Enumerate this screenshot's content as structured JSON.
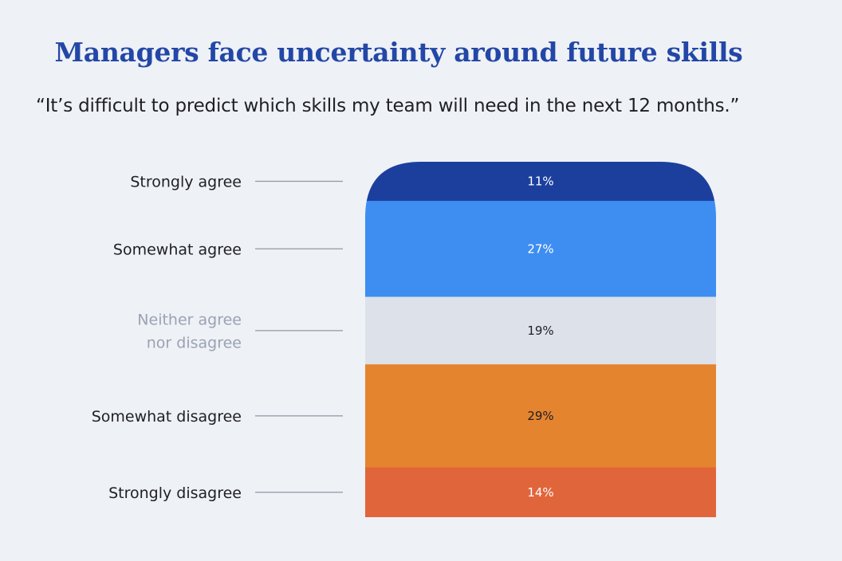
{
  "title": "Managers face uncertainty around future skills",
  "subtitle": "“It’s difficult to predict which skills my team will need  in the next 12 months.”",
  "chart_data": {
    "type": "bar",
    "orientation": "stacked-vertical",
    "categories": [
      "Strongly agree",
      "Somewhat agree",
      "Neither agree nor disagree",
      "Somewhat disagree",
      "Strongly disagree"
    ],
    "category_lines": [
      [
        "Strongly agree"
      ],
      [
        "Somewhat agree"
      ],
      [
        "Neither agree",
        "nor disagree"
      ],
      [
        "Somewhat disagree"
      ],
      [
        "Strongly disagree"
      ]
    ],
    "values": [
      11,
      27,
      19,
      29,
      14
    ],
    "value_labels": [
      "11%",
      "27%",
      "19%",
      "29%",
      "14%"
    ],
    "unit": "%",
    "colors": [
      "#1c3f9e",
      "#3d8ef0",
      "#dde1ea",
      "#e5842e",
      "#e1653b"
    ],
    "value_label_colors": [
      "#ffffff",
      "#ffffff",
      "#1f1f25",
      "#1f1f25",
      "#ffffff"
    ],
    "category_label_colors": [
      "#1f1f25",
      "#1f1f25",
      "#9aa3b2",
      "#1f1f25",
      "#1f1f25"
    ],
    "connector_color": "#8f97a5"
  }
}
